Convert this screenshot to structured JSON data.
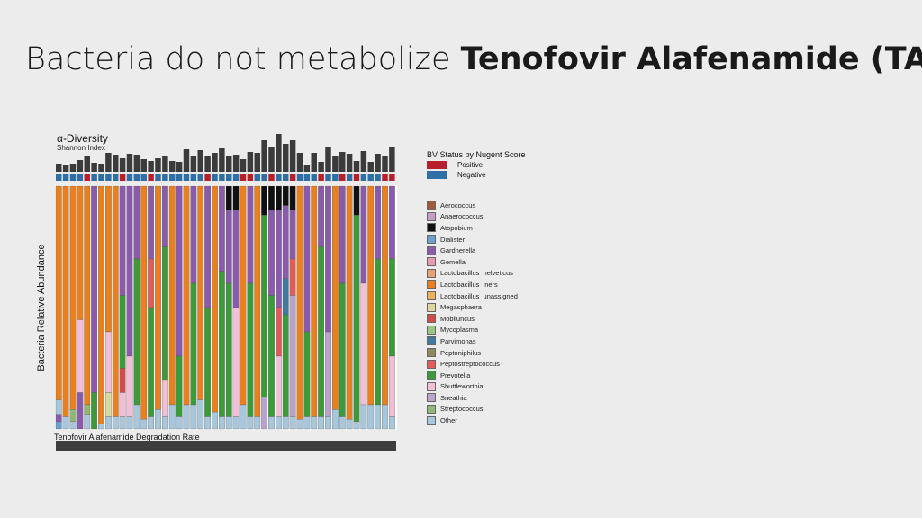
{
  "slide": {
    "title_light": "Bacteria do not metabolize ",
    "title_bold": "Tenofovir Alafenamide (TAF)"
  },
  "colors": {
    "Aerococcus": "#a05a3c",
    "Anaerococcus": "#c99cc7",
    "Atopobium": "#111111",
    "Dialister": "#6a9fd0",
    "Gardnerella": "#8a5bab",
    "Gemella": "#e59ab0",
    "Lactobacillus helveticus": "#e8a271",
    "Lactobacillus iners": "#e8801f",
    "Lactobacillus unassigned": "#eeb058",
    "Megasphaera": "#dcd6a0",
    "Mobiluncus": "#d24b4b",
    "Mycoplasma": "#9ac77e",
    "Parvimonas": "#3f7aa0",
    "Peptoniphilus": "#8e8a5c",
    "Peptostreptococcus": "#e25a5a",
    "Prevotella": "#3c9a3a",
    "Shuttleworthia": "#f2bfd6",
    "Sneathia": "#b9a3cc",
    "Streptococcus": "#8fb877",
    "Other": "#a8c6dc",
    "positive": "#b5202a",
    "negative": "#2f6fa8",
    "diversity_bar": "#3b3b3b"
  },
  "chart_data": {
    "type": "bar",
    "title": "α-Diversity",
    "subtitle": "Shannon Index",
    "ylabel": "Bacteria Relative Abundance",
    "xlabel": "Tenofovir Alafenamide Degradation Rate",
    "bv_legend_title": "BV Status by Nugent Score",
    "bv_positive_label": "Positive",
    "bv_negative_label": "Negative",
    "taxa": [
      "Aerococcus",
      "Anaerococcus",
      "Atopobium",
      "Dialister",
      "Gardnerella",
      "Gemella",
      "Lactobacillus  helveticus",
      "Lactobacillus  iners",
      "Lactobacillus  unassigned",
      "Megasphaera",
      "Mobiluncus",
      "Mycoplasma",
      "Parvimonas",
      "Peptoniphilus",
      "Peptostreptococcus",
      "Prevotella",
      "Shuttleworthia",
      "Sneathia",
      "Streptococcus",
      "Other"
    ],
    "diversity": [
      0.45,
      0.4,
      0.45,
      0.65,
      0.9,
      0.5,
      0.45,
      1.05,
      0.95,
      0.75,
      1.0,
      0.95,
      0.7,
      0.6,
      0.75,
      0.85,
      0.6,
      0.55,
      1.25,
      0.9,
      1.2,
      0.85,
      1.05,
      1.3,
      0.85,
      0.95,
      0.7,
      1.1,
      1.05,
      1.75,
      1.35,
      2.1,
      1.55,
      1.75,
      1.05,
      0.4,
      1.05,
      0.55,
      1.35,
      0.85,
      1.1,
      1.0,
      0.6,
      1.15,
      0.55,
      1.0,
      0.85,
      1.35
    ],
    "bv": [
      "N",
      "N",
      "N",
      "N",
      "P",
      "N",
      "N",
      "N",
      "N",
      "P",
      "N",
      "N",
      "N",
      "P",
      "N",
      "N",
      "N",
      "N",
      "N",
      "N",
      "N",
      "P",
      "N",
      "N",
      "N",
      "N",
      "P",
      "P",
      "N",
      "N",
      "P",
      "N",
      "N",
      "P",
      "N",
      "N",
      "N",
      "P",
      "N",
      "N",
      "P",
      "N",
      "P",
      "N",
      "N",
      "N",
      "P",
      "P"
    ],
    "columns": [
      [
        [
          7,
          0.88
        ],
        [
          19,
          0.06
        ],
        [
          4,
          0.03
        ],
        [
          3,
          0.03
        ]
      ],
      [
        [
          7,
          0.95
        ],
        [
          19,
          0.05
        ]
      ],
      [
        [
          7,
          0.92
        ],
        [
          18,
          0.05
        ],
        [
          19,
          0.03
        ]
      ],
      [
        [
          7,
          0.55
        ],
        [
          16,
          0.3
        ],
        [
          4,
          0.15
        ]
      ],
      [
        [
          7,
          0.9
        ],
        [
          18,
          0.04
        ],
        [
          19,
          0.06
        ]
      ],
      [
        [
          4,
          0.85
        ],
        [
          15,
          0.15
        ]
      ],
      [
        [
          7,
          0.98
        ],
        [
          19,
          0.02
        ]
      ],
      [
        [
          7,
          0.6
        ],
        [
          16,
          0.25
        ],
        [
          9,
          0.1
        ],
        [
          19,
          0.05
        ]
      ],
      [
        [
          7,
          0.95
        ],
        [
          19,
          0.05
        ]
      ],
      [
        [
          4,
          0.45
        ],
        [
          15,
          0.3
        ],
        [
          10,
          0.1
        ],
        [
          16,
          0.1
        ],
        [
          19,
          0.05
        ]
      ],
      [
        [
          4,
          0.7
        ],
        [
          16,
          0.25
        ],
        [
          19,
          0.05
        ]
      ],
      [
        [
          4,
          0.3
        ],
        [
          15,
          0.6
        ],
        [
          19,
          0.1
        ]
      ],
      [
        [
          7,
          0.96
        ],
        [
          19,
          0.04
        ]
      ],
      [
        [
          4,
          0.3
        ],
        [
          14,
          0.2
        ],
        [
          15,
          0.45
        ],
        [
          19,
          0.05
        ]
      ],
      [
        [
          7,
          0.92
        ],
        [
          19,
          0.08
        ]
      ],
      [
        [
          4,
          0.25
        ],
        [
          15,
          0.55
        ],
        [
          16,
          0.15
        ],
        [
          19,
          0.05
        ]
      ],
      [
        [
          7,
          0.9
        ],
        [
          19,
          0.1
        ]
      ],
      [
        [
          4,
          0.7
        ],
        [
          15,
          0.25
        ],
        [
          19,
          0.05
        ]
      ],
      [
        [
          7,
          0.9
        ],
        [
          19,
          0.1
        ]
      ],
      [
        [
          4,
          0.4
        ],
        [
          15,
          0.5
        ],
        [
          19,
          0.1
        ]
      ],
      [
        [
          7,
          0.88
        ],
        [
          19,
          0.12
        ]
      ],
      [
        [
          4,
          0.5
        ],
        [
          15,
          0.45
        ],
        [
          19,
          0.05
        ]
      ],
      [
        [
          7,
          0.93
        ],
        [
          19,
          0.07
        ]
      ],
      [
        [
          4,
          0.35
        ],
        [
          15,
          0.6
        ],
        [
          19,
          0.05
        ]
      ],
      [
        [
          2,
          0.1
        ],
        [
          4,
          0.3
        ],
        [
          15,
          0.55
        ],
        [
          19,
          0.05
        ]
      ],
      [
        [
          2,
          0.1
        ],
        [
          4,
          0.4
        ],
        [
          16,
          0.45
        ],
        [
          19,
          0.05
        ]
      ],
      [
        [
          7,
          0.9
        ],
        [
          19,
          0.1
        ]
      ],
      [
        [
          4,
          0.4
        ],
        [
          15,
          0.55
        ],
        [
          19,
          0.05
        ]
      ],
      [
        [
          7,
          0.95
        ],
        [
          19,
          0.05
        ]
      ],
      [
        [
          2,
          0.12
        ],
        [
          15,
          0.75
        ],
        [
          17,
          0.13
        ]
      ],
      [
        [
          2,
          0.1
        ],
        [
          4,
          0.35
        ],
        [
          15,
          0.5
        ],
        [
          19,
          0.05
        ]
      ],
      [
        [
          2,
          0.1
        ],
        [
          4,
          0.4
        ],
        [
          14,
          0.2
        ],
        [
          16,
          0.25
        ],
        [
          19,
          0.05
        ]
      ],
      [
        [
          2,
          0.08
        ],
        [
          4,
          0.3
        ],
        [
          12,
          0.15
        ],
        [
          15,
          0.42
        ],
        [
          19,
          0.05
        ]
      ],
      [
        [
          2,
          0.1
        ],
        [
          4,
          0.2
        ],
        [
          14,
          0.15
        ],
        [
          17,
          0.5
        ],
        [
          19,
          0.05
        ]
      ],
      [
        [
          7,
          0.96
        ],
        [
          19,
          0.04
        ]
      ],
      [
        [
          4,
          0.6
        ],
        [
          15,
          0.35
        ],
        [
          19,
          0.05
        ]
      ],
      [
        [
          7,
          0.95
        ],
        [
          19,
          0.05
        ]
      ],
      [
        [
          4,
          0.25
        ],
        [
          15,
          0.7
        ],
        [
          19,
          0.05
        ]
      ],
      [
        [
          4,
          0.6
        ],
        [
          17,
          0.35
        ],
        [
          19,
          0.05
        ]
      ],
      [
        [
          7,
          0.92
        ],
        [
          19,
          0.08
        ]
      ],
      [
        [
          4,
          0.4
        ],
        [
          15,
          0.55
        ],
        [
          19,
          0.05
        ]
      ],
      [
        [
          7,
          0.96
        ],
        [
          19,
          0.04
        ]
      ],
      [
        [
          2,
          0.12
        ],
        [
          15,
          0.85
        ],
        [
          19,
          0.03
        ]
      ],
      [
        [
          4,
          0.4
        ],
        [
          16,
          0.5
        ],
        [
          19,
          0.1
        ]
      ],
      [
        [
          7,
          0.9
        ],
        [
          19,
          0.1
        ]
      ],
      [
        [
          4,
          0.3
        ],
        [
          15,
          0.6
        ],
        [
          19,
          0.1
        ]
      ],
      [
        [
          7,
          0.9
        ],
        [
          19,
          0.1
        ]
      ],
      [
        [
          4,
          0.3
        ],
        [
          15,
          0.4
        ],
        [
          16,
          0.25
        ],
        [
          19,
          0.05
        ]
      ]
    ]
  }
}
